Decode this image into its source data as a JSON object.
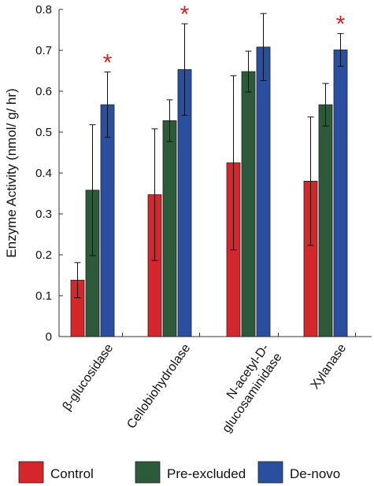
{
  "chart_data": {
    "type": "bar",
    "title": "",
    "xlabel": "",
    "ylabel": "Enzyme Activity (nmol/ g/ hr)",
    "ylim": [
      0,
      0.8
    ],
    "yticks": [
      "0",
      "0.1",
      "0.2",
      "0.3",
      "0.4",
      "0.5",
      "0.6",
      "0.7",
      "0.8"
    ],
    "categories": [
      [
        "β-glucosidase"
      ],
      [
        "Cellobiohydrolase"
      ],
      [
        "N-acetyl-D-",
        "glucosaminidase"
      ],
      [
        "Xylanase"
      ]
    ],
    "series": [
      {
        "name": "Control",
        "color": "#d4262b",
        "values": [
          0.138,
          0.347,
          0.425,
          0.38
        ],
        "errors": [
          0.043,
          0.161,
          0.213,
          0.157
        ]
      },
      {
        "name": "Pre-excluded",
        "color": "#2c5a3b",
        "values": [
          0.358,
          0.528,
          0.648,
          0.567
        ],
        "errors": [
          0.16,
          0.051,
          0.05,
          0.052
        ]
      },
      {
        "name": "De-novo",
        "color": "#2a4fa0",
        "values": [
          0.567,
          0.653,
          0.708,
          0.701
        ],
        "errors": [
          0.08,
          0.112,
          0.082,
          0.04
        ]
      }
    ],
    "significance_marker": "*",
    "significance_color": "#c62828",
    "significant": [
      true,
      true,
      false,
      true
    ],
    "grid": false,
    "legend_position": "bottom"
  }
}
